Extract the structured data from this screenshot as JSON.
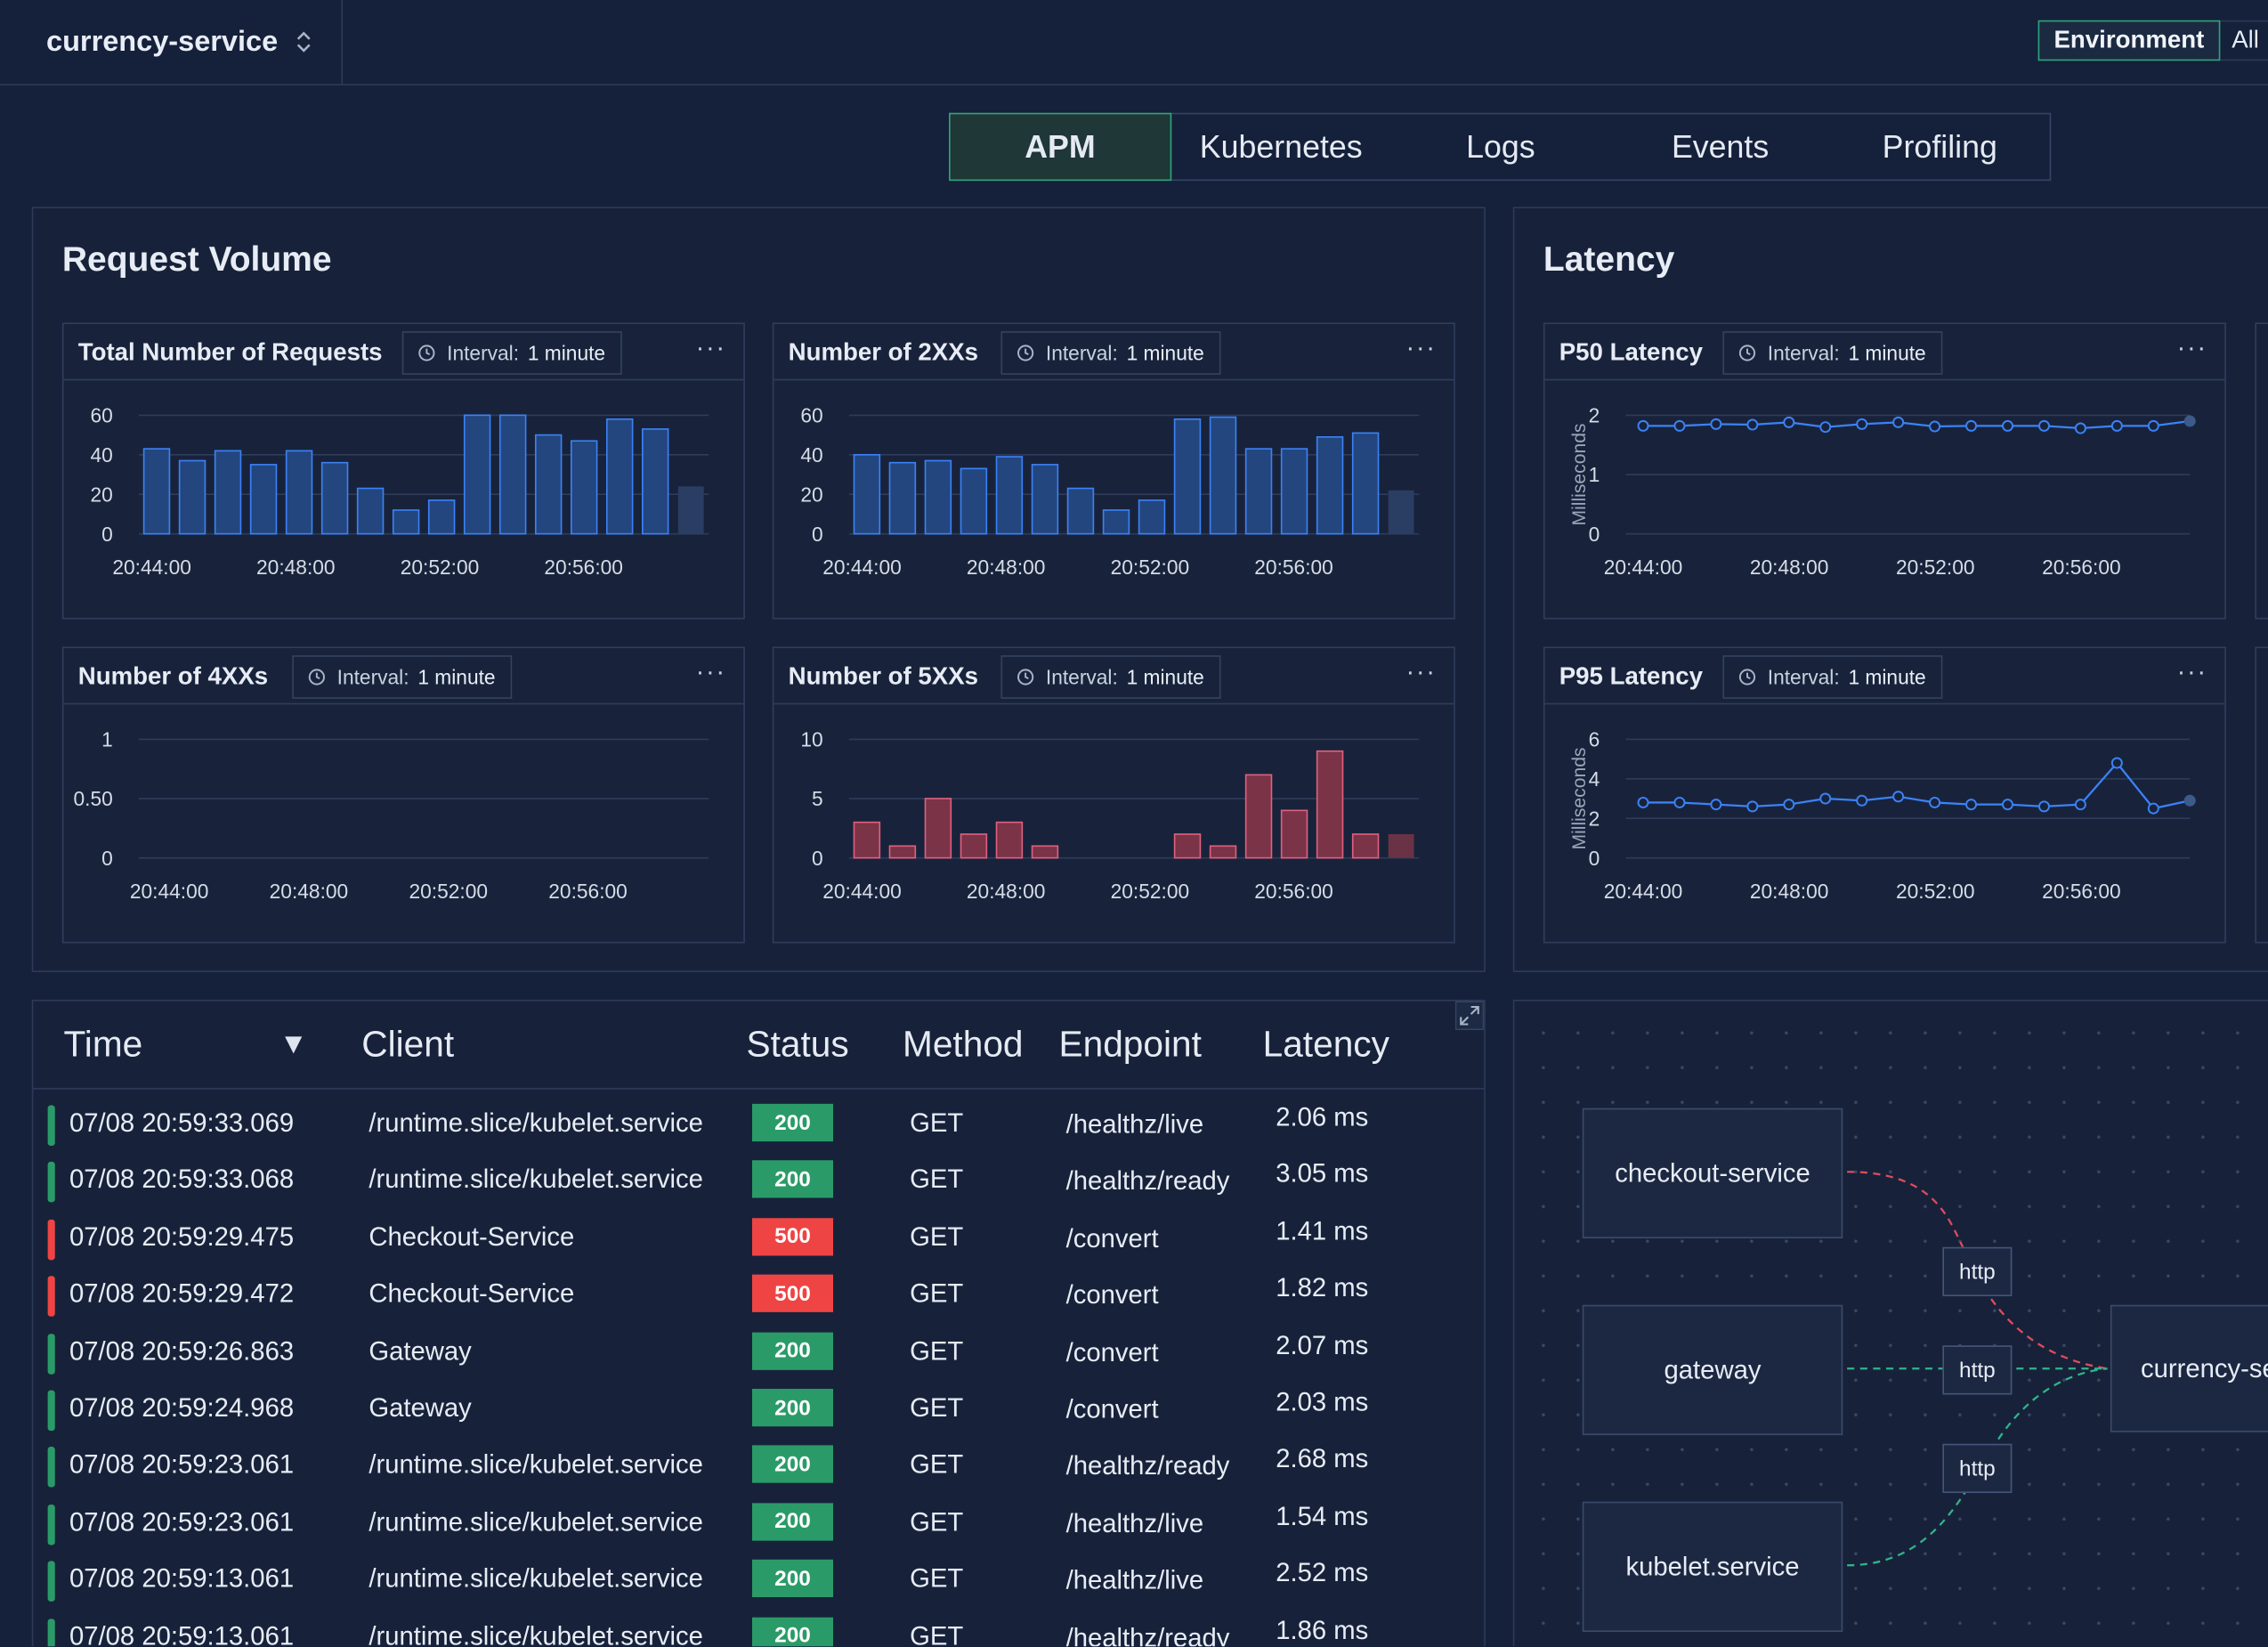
{
  "header": {
    "service_name": "currency-service",
    "environment_label": "Environment",
    "environment_value": "All"
  },
  "tabs": [
    {
      "label": "APM",
      "active": true
    },
    {
      "label": "Kubernetes",
      "active": false
    },
    {
      "label": "Logs",
      "active": false
    },
    {
      "label": "Events",
      "active": false
    },
    {
      "label": "Profiling",
      "active": false
    }
  ],
  "request_volume": {
    "title": "Request Volume",
    "interval_key": "Interval:",
    "interval_value": "1 minute",
    "menu": "···"
  },
  "latency": {
    "title": "Latency"
  },
  "chart_data": [
    {
      "id": "total",
      "type": "bar",
      "title": "Total Number of Requests",
      "interval": "Interval: 1 minute",
      "xticks": [
        "20:44:00",
        "20:48:00",
        "20:52:00",
        "20:56:00"
      ],
      "yticks": [
        "0",
        "20",
        "40",
        "60"
      ],
      "ylim": [
        0,
        60
      ],
      "values": [
        43,
        37,
        42,
        35,
        42,
        36,
        23,
        12,
        17,
        60,
        60,
        50,
        47,
        58,
        53,
        24
      ],
      "color": "#3b82f6",
      "last_partial": true
    },
    {
      "id": "2xx",
      "type": "bar",
      "title": "Number of 2XXs",
      "interval": "Interval: 1 minute",
      "xticks": [
        "20:44:00",
        "20:48:00",
        "20:52:00",
        "20:56:00"
      ],
      "yticks": [
        "0",
        "20",
        "40",
        "60"
      ],
      "ylim": [
        0,
        60
      ],
      "values": [
        40,
        36,
        37,
        33,
        39,
        35,
        23,
        12,
        17,
        58,
        59,
        43,
        43,
        49,
        51,
        22
      ],
      "color": "#3b82f6",
      "last_partial": true
    },
    {
      "id": "4xx",
      "type": "bar",
      "title": "Number of 4XXs",
      "interval": "Interval: 1 minute",
      "xticks": [
        "20:44:00",
        "20:48:00",
        "20:52:00",
        "20:56:00"
      ],
      "yticks": [
        "0",
        "0.50",
        "1"
      ],
      "ylim": [
        0,
        1
      ],
      "values": [],
      "color": "#3b82f6",
      "last_partial": false
    },
    {
      "id": "5xx",
      "type": "bar",
      "title": "Number of 5XXs",
      "interval": "Interval: 1 minute",
      "xticks": [
        "20:44:00",
        "20:48:00",
        "20:52:00",
        "20:56:00"
      ],
      "yticks": [
        "0",
        "5",
        "10"
      ],
      "ylim": [
        0,
        10
      ],
      "values": [
        3,
        1,
        5,
        2,
        3,
        1,
        0,
        0,
        0,
        2,
        1,
        7,
        4,
        9,
        2,
        2
      ],
      "color": "#e0607e",
      "last_partial": true
    },
    {
      "id": "p50",
      "type": "line",
      "title": "P50 Latency",
      "interval": "Interval: 1 minute",
      "ylabel": "Milliseconds",
      "xticks": [
        "20:44:00",
        "20:48:00",
        "20:52:00",
        "20:56:00"
      ],
      "yticks": [
        "0",
        "1",
        "2"
      ],
      "ylim": [
        0,
        2
      ],
      "values": [
        1.82,
        1.82,
        1.85,
        1.84,
        1.88,
        1.8,
        1.85,
        1.88,
        1.81,
        1.82,
        1.82,
        1.82,
        1.78,
        1.82,
        1.82,
        1.9
      ],
      "color": "#3b82f6"
    },
    {
      "id": "p95",
      "type": "line",
      "title": "P95 Latency",
      "interval": "Interval: 1 minute",
      "ylabel": "Milliseconds",
      "xticks": [
        "20:44:00",
        "20:48:00",
        "20:52:00",
        "20:56:00"
      ],
      "yticks": [
        "0",
        "2",
        "4",
        "6"
      ],
      "ylim": [
        0,
        6
      ],
      "values": [
        2.8,
        2.8,
        2.7,
        2.6,
        2.7,
        3.0,
        2.9,
        3.1,
        2.8,
        2.7,
        2.7,
        2.6,
        2.7,
        4.8,
        2.5,
        2.9
      ],
      "color": "#3b82f6"
    }
  ],
  "table": {
    "columns": [
      "Time",
      "Client",
      "Status",
      "Method",
      "Endpoint",
      "Latency"
    ],
    "sort_icon": "▼",
    "rows": [
      {
        "time": "07/08 20:59:33.069",
        "client": "/runtime.slice/kubelet.service",
        "status": "200",
        "method": "GET",
        "endpoint": "/healthz/live",
        "latency": "2.06 ms"
      },
      {
        "time": "07/08 20:59:33.068",
        "client": "/runtime.slice/kubelet.service",
        "status": "200",
        "method": "GET",
        "endpoint": "/healthz/ready",
        "latency": "3.05 ms"
      },
      {
        "time": "07/08 20:59:29.475",
        "client": "Checkout-Service",
        "status": "500",
        "method": "GET",
        "endpoint": "/convert",
        "latency": "1.41 ms"
      },
      {
        "time": "07/08 20:59:29.472",
        "client": "Checkout-Service",
        "status": "500",
        "method": "GET",
        "endpoint": "/convert",
        "latency": "1.82 ms"
      },
      {
        "time": "07/08 20:59:26.863",
        "client": "Gateway",
        "status": "200",
        "method": "GET",
        "endpoint": "/convert",
        "latency": "2.07 ms"
      },
      {
        "time": "07/08 20:59:24.968",
        "client": "Gateway",
        "status": "200",
        "method": "GET",
        "endpoint": "/convert",
        "latency": "2.03 ms"
      },
      {
        "time": "07/08 20:59:23.061",
        "client": "/runtime.slice/kubelet.service",
        "status": "200",
        "method": "GET",
        "endpoint": "/healthz/ready",
        "latency": "2.68 ms"
      },
      {
        "time": "07/08 20:59:23.061",
        "client": "/runtime.slice/kubelet.service",
        "status": "200",
        "method": "GET",
        "endpoint": "/healthz/live",
        "latency": "1.54 ms"
      },
      {
        "time": "07/08 20:59:13.061",
        "client": "/runtime.slice/kubelet.service",
        "status": "200",
        "method": "GET",
        "endpoint": "/healthz/live",
        "latency": "2.52 ms"
      },
      {
        "time": "07/08 20:59:13.061",
        "client": "/runtime.slice/kubelet.service",
        "status": "200",
        "method": "GET",
        "endpoint": "/healthz/ready",
        "latency": "1.86 ms"
      }
    ]
  },
  "service_map": {
    "nodes": {
      "checkout": "checkout-service",
      "gateway": "gateway",
      "kubelet": "kubelet.service",
      "target": "currency-service"
    },
    "edge_labels": [
      "http",
      "http",
      "http"
    ]
  },
  "colors": {
    "ok": "#2a9b68",
    "error": "#ef4444",
    "accent": "#2fa37a",
    "bar_blue": "#3b82f6",
    "bar_red": "#e0607e"
  }
}
